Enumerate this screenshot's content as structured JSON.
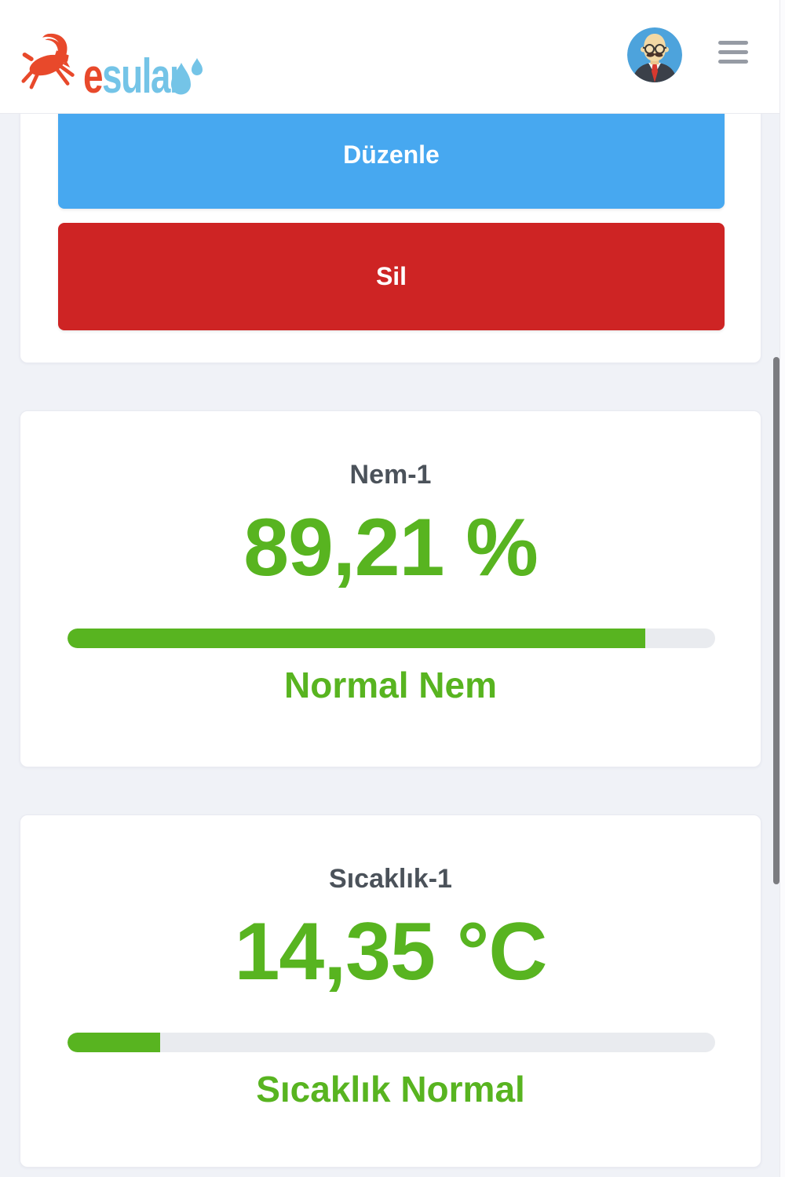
{
  "header": {
    "logo": {
      "text_first_letter": "e",
      "text_rest": "sular",
      "goat_icon_color": "#e8492b",
      "text_blue_color": "#74c4e7"
    },
    "avatar": "user-avatar",
    "menu": "hamburger-menu"
  },
  "actions": {
    "edit_label": "Düzenle",
    "delete_label": "Sil"
  },
  "sensors": [
    {
      "title": "Nem-1",
      "value": "89,21 %",
      "percent": 89.21,
      "status": "Normal Nem"
    },
    {
      "title": "Sıcaklık-1",
      "value": "14,35 °C",
      "percent": 14.35,
      "status": "Sıcaklık Normal"
    }
  ],
  "colors": {
    "accent_green": "#58b420",
    "button_blue": "#47a8f0",
    "button_red": "#ce2424",
    "title_gray": "#4b525a",
    "page_background": "#f0f2f7"
  }
}
